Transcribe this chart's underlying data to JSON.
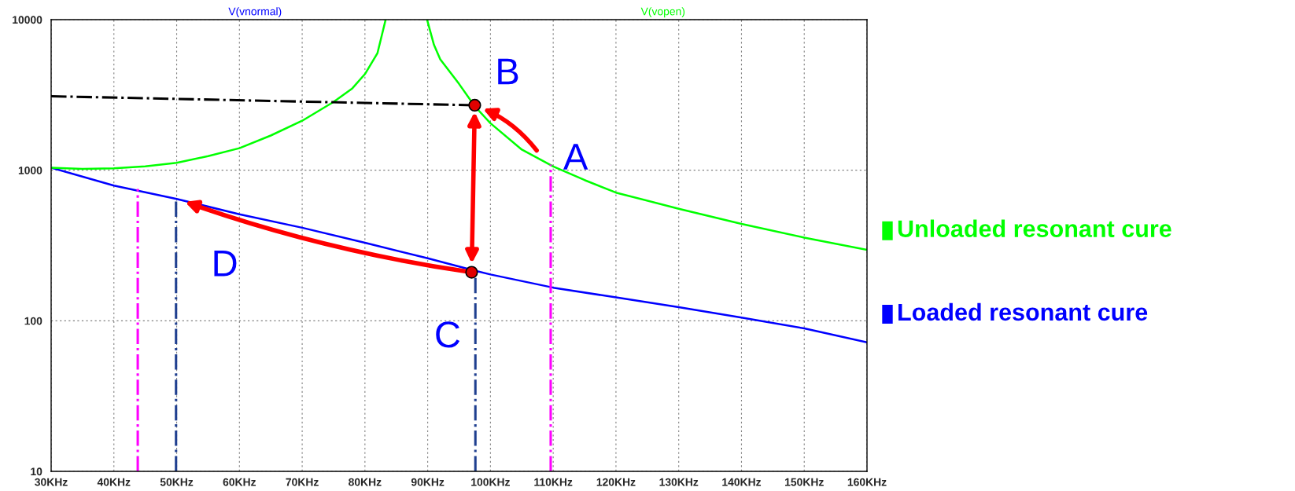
{
  "chart_data": {
    "type": "line",
    "log": "y",
    "grid": true,
    "x": [
      30,
      40,
      50,
      60,
      70,
      80,
      90,
      97,
      100,
      110,
      120,
      130,
      140,
      150,
      160
    ],
    "xlim": [
      30,
      160
    ],
    "xticks": [
      {
        "value": 30,
        "label": "30KHz"
      },
      {
        "value": 40,
        "label": "40KHz"
      },
      {
        "value": 50,
        "label": "50KHz"
      },
      {
        "value": 60,
        "label": "60KHz"
      },
      {
        "value": 70,
        "label": "70KHz"
      },
      {
        "value": 80,
        "label": "80KHz"
      },
      {
        "value": 90,
        "label": "90KHz"
      },
      {
        "value": 100,
        "label": "100KHz"
      },
      {
        "value": 110,
        "label": "110KHz"
      },
      {
        "value": 120,
        "label": "120KHz"
      },
      {
        "value": 130,
        "label": "130KHz"
      },
      {
        "value": 140,
        "label": "140KHz"
      },
      {
        "value": 150,
        "label": "150KHz"
      },
      {
        "value": 160,
        "label": "160KHz"
      }
    ],
    "ylim": [
      10,
      10000
    ],
    "yticks": [
      10,
      100,
      1000,
      10000
    ],
    "series": [
      {
        "name": "V(vnormal)",
        "color": "#0000ff",
        "values": [
          1040,
          790,
          645,
          510,
          415,
          330,
          260,
          218,
          203,
          166,
          143,
          123,
          105,
          89,
          72
        ]
      },
      {
        "name": "V(vopen)",
        "color": "#00ff00",
        "x": [
          30,
          35,
          40,
          45,
          50,
          55,
          60,
          65,
          70,
          75,
          78,
          80,
          82,
          83.3,
          86,
          89.9,
          91,
          92,
          95,
          97.5,
          100,
          105,
          110,
          115,
          120,
          130,
          140,
          150,
          160
        ],
        "values": [
          1040,
          1020,
          1030,
          1060,
          1120,
          1240,
          1400,
          1700,
          2130,
          2840,
          3500,
          4350,
          6000,
          10000,
          null,
          10000,
          6800,
          5450,
          3740,
          2660,
          2050,
          1370,
          1060,
          860,
          710,
          555,
          440,
          357,
          296
        ]
      },
      {
        "color": "#000000",
        "line_style": "dashed",
        "x": [
          30,
          97.5
        ],
        "values": [
          3100,
          2700
        ]
      },
      {
        "color": "#ff00ff",
        "line_style": "dashed",
        "x": [
          43.8,
          43.8
        ],
        "values": [
          10,
          750
        ]
      },
      {
        "color": "#1f3f8f",
        "line_style": "dashed",
        "x": [
          49.9,
          49.9
        ],
        "values": [
          10,
          650
        ]
      },
      {
        "color": "#1f3f8f",
        "line_style": "dashed",
        "x": [
          97.6,
          97.6
        ],
        "values": [
          10,
          200
        ]
      },
      {
        "color": "#ff00ff",
        "line_style": "dashed",
        "x": [
          109.6,
          109.6
        ],
        "values": [
          10,
          1090
        ]
      },
      {
        "type": "scatter",
        "color": "#e00000",
        "marker": "circle",
        "x": [
          97.5,
          97
        ],
        "values": [
          2700,
          210
        ]
      }
    ],
    "annotations": [
      {
        "text": "A",
        "x": 108,
        "y": 1250
      },
      {
        "text": "B",
        "x": 97.5,
        "y": 2700
      },
      {
        "text": "C",
        "x": 97,
        "y": 210
      },
      {
        "text": "D",
        "x": 50,
        "y": 645
      },
      "Unloaded resonant cure",
      "Loaded resonant cure"
    ]
  }
}
